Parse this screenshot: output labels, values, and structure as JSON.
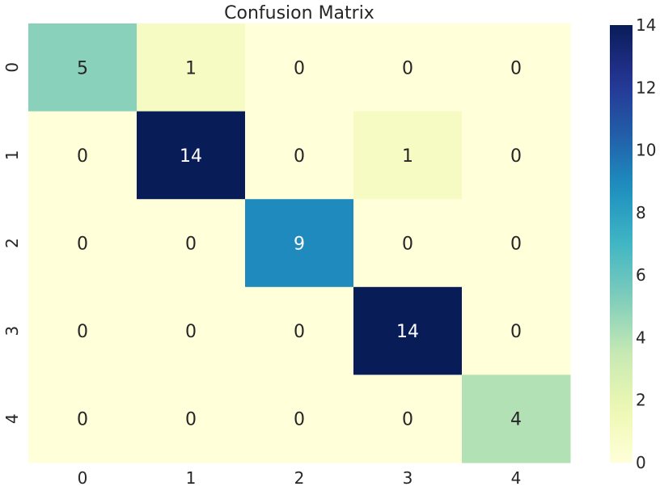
{
  "chart_data": {
    "type": "heatmap",
    "title": "Confusion Matrix",
    "xlabel": "",
    "ylabel": "",
    "x_categories": [
      "0",
      "1",
      "2",
      "3",
      "4"
    ],
    "y_categories": [
      "0",
      "1",
      "2",
      "3",
      "4"
    ],
    "values": [
      [
        5,
        1,
        0,
        0,
        0
      ],
      [
        0,
        14,
        0,
        1,
        0
      ],
      [
        0,
        0,
        9,
        0,
        0
      ],
      [
        0,
        0,
        0,
        14,
        0
      ],
      [
        0,
        0,
        0,
        0,
        4
      ]
    ],
    "colorscale": "YlGnBu",
    "color_range": [
      0,
      14
    ],
    "colorbar_ticks": [
      "0",
      "2",
      "4",
      "6",
      "8",
      "10",
      "12",
      "14"
    ],
    "annotate": true,
    "grid": false
  }
}
